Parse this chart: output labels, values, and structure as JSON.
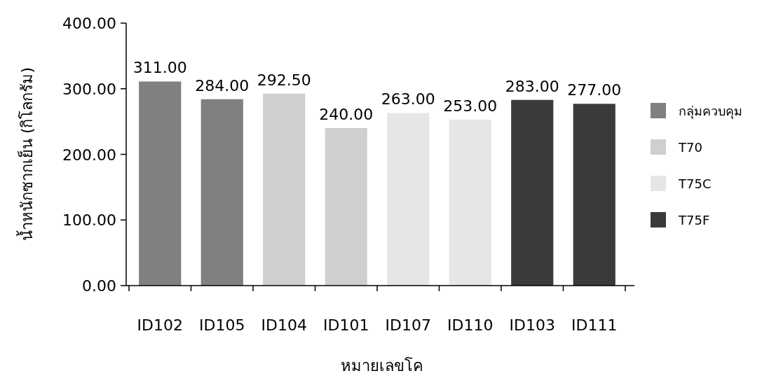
{
  "chart_data": {
    "type": "bar",
    "stacked": true,
    "xlabel": "หมายเลขโค",
    "ylabel": "น้ำหนักซากเย็น (กิโลกรัม)",
    "categories": [
      "ID102",
      "ID105",
      "ID104",
      "ID101",
      "ID107",
      "ID110",
      "ID103",
      "ID111"
    ],
    "series": [
      {
        "name": "กลุ่มควบคุม",
        "color": "#808080",
        "values": [
          311,
          284,
          null,
          null,
          null,
          null,
          null,
          null
        ],
        "value_labels": [
          "311.00",
          "284.00",
          null,
          null,
          null,
          null,
          null,
          null
        ]
      },
      {
        "name": "T70",
        "color": "#d0cfd0",
        "values": [
          null,
          null,
          292.5,
          240,
          null,
          null,
          null,
          null
        ],
        "value_labels": [
          null,
          null,
          "292.50",
          "240.00",
          null,
          null,
          null,
          null
        ]
      },
      {
        "name": "T75C",
        "color": "#e6e6e6",
        "values": [
          null,
          null,
          null,
          null,
          263,
          253,
          null,
          null
        ],
        "value_labels": [
          null,
          null,
          null,
          null,
          "263.00",
          "253.00",
          null,
          null
        ]
      },
      {
        "name": "T75F",
        "color": "#3a3a3a",
        "values": [
          null,
          null,
          null,
          null,
          null,
          null,
          283,
          277
        ],
        "value_labels": [
          null,
          null,
          null,
          null,
          null,
          null,
          "283.00",
          "277.00"
        ]
      }
    ],
    "ylim": [
      0,
      400
    ],
    "yticks": [
      {
        "value": 0,
        "label": "0.00"
      },
      {
        "value": 100,
        "label": "100.00"
      },
      {
        "value": 200,
        "label": "200.00"
      },
      {
        "value": 300,
        "label": "300.00"
      },
      {
        "value": 400,
        "label": "400.00"
      }
    ],
    "grid": false,
    "legend": "right"
  }
}
